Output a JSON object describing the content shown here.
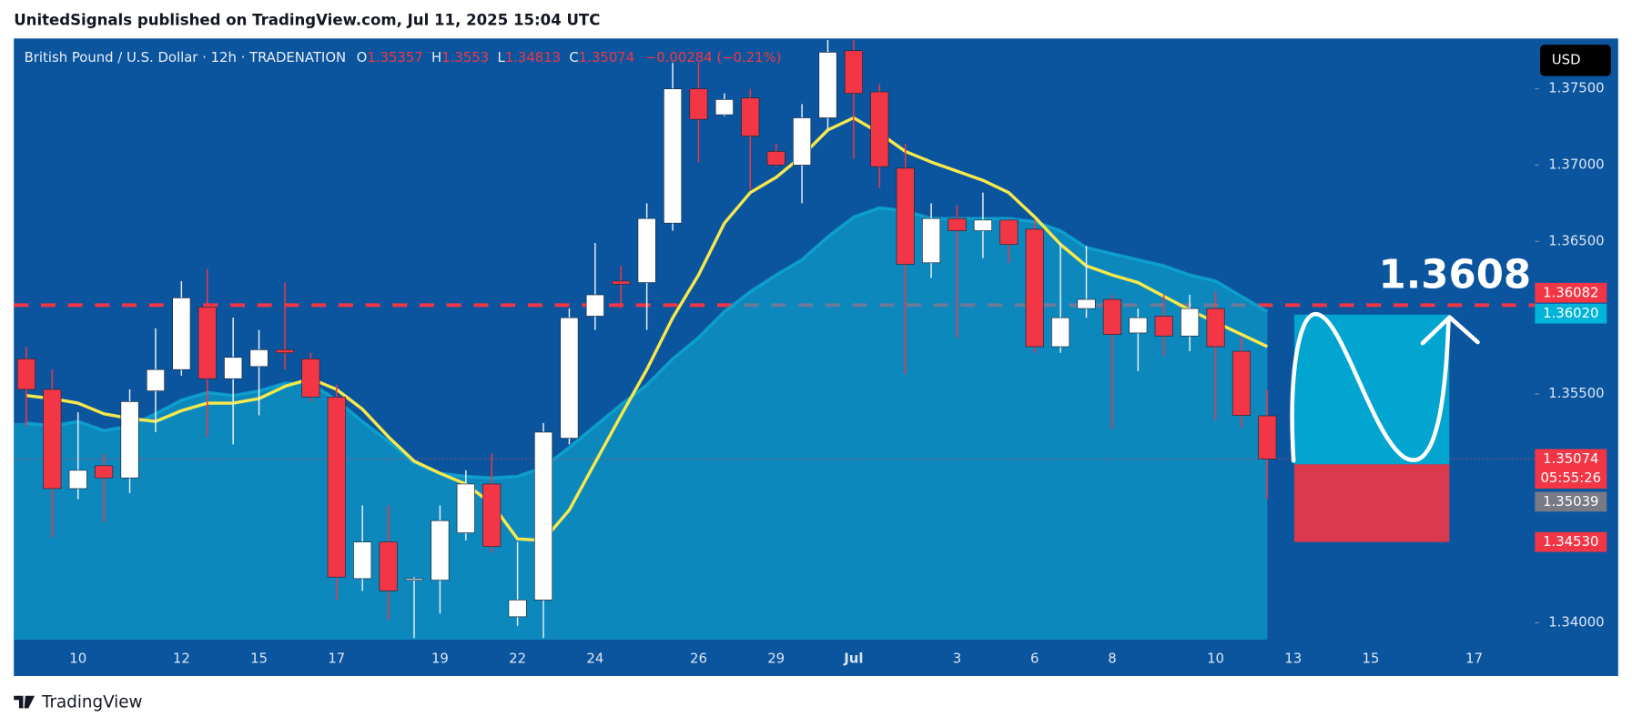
{
  "header": "UnitedSignals published on TradingView.com, Jul 11, 2025 15:04 UTC",
  "footer": "TradingView",
  "chart_data": {
    "type": "candlestick",
    "symbol": "British Pound / U.S. Dollar · 12h · TRADENATION",
    "ohlc_prefixes": [
      "O",
      "H",
      "L",
      "C"
    ],
    "change": "−0.00284 (−0.21%)",
    "currency": "USD",
    "countdown": "05:55:26",
    "annotation": "1.3608",
    "up_color": "#ffffff",
    "down_color": "#f23645",
    "categories": [
      null,
      null,
      "10",
      null,
      null,
      null,
      "12",
      null,
      null,
      "15",
      null,
      null,
      "17",
      null,
      null,
      null,
      "19",
      null,
      null,
      "22",
      null,
      null,
      "24",
      null,
      null,
      null,
      "26",
      null,
      null,
      "29",
      null,
      null,
      "Jul",
      null,
      null,
      null,
      "3",
      null,
      null,
      "6",
      null,
      null,
      "8",
      null,
      null,
      null,
      "10",
      null,
      null,
      "13",
      null,
      null,
      "15",
      null,
      null,
      null,
      "17"
    ],
    "open": [
      1.3573,
      1.3553,
      1.3488,
      1.3503,
      1.3495,
      1.3552,
      1.3566,
      1.3607,
      1.356,
      1.3568,
      1.3579,
      1.3573,
      1.3548,
      1.3429,
      1.3453,
      1.3428,
      1.3428,
      1.3459,
      1.3491,
      1.3404,
      1.3415,
      1.3521,
      1.3601,
      1.3624,
      1.3623,
      1.3662,
      1.375,
      1.3733,
      1.3744,
      1.3709,
      1.37,
      1.3731,
      1.3775,
      1.3748,
      1.3698,
      1.3636,
      1.3665,
      1.3657,
      1.3664,
      1.3658,
      1.3581,
      1.3606,
      1.3612,
      1.359,
      1.3601,
      1.3588,
      1.3606,
      1.3578,
      1.35357,
      null,
      null,
      null,
      null,
      null,
      null,
      null,
      null
    ],
    "high": [
      1.3581,
      1.3566,
      1.3538,
      1.3511,
      1.3553,
      1.3593,
      1.3624,
      1.3632,
      1.36,
      1.3592,
      1.3623,
      1.3577,
      1.3556,
      1.3477,
      1.3477,
      1.343,
      1.3477,
      1.35,
      1.3511,
      1.3453,
      1.3531,
      1.3606,
      1.3649,
      1.3634,
      1.3675,
      1.3767,
      1.3767,
      1.3747,
      1.375,
      1.3714,
      1.374,
      1.3782,
      1.3782,
      1.3753,
      1.3714,
      1.3675,
      1.3674,
      1.3682,
      1.3665,
      1.3664,
      1.3649,
      1.3647,
      1.3615,
      1.3606,
      1.3615,
      1.3615,
      1.3617,
      1.3587,
      1.3553,
      null,
      null,
      null,
      null,
      null,
      null,
      null,
      null
    ],
    "low": [
      1.3529,
      1.3456,
      1.3481,
      1.3466,
      1.3485,
      1.3525,
      1.3562,
      1.3522,
      1.3517,
      1.3536,
      1.3566,
      1.3545,
      1.3415,
      1.3421,
      1.3402,
      1.339,
      1.3406,
      1.3454,
      1.3446,
      1.3398,
      1.339,
      1.3517,
      1.3592,
      1.3606,
      1.3592,
      1.3657,
      1.3702,
      1.3732,
      1.3684,
      1.3699,
      1.3675,
      1.3723,
      1.3704,
      1.3685,
      1.3563,
      1.3626,
      1.3587,
      1.3639,
      1.3636,
      1.3577,
      1.3577,
      1.36,
      1.3527,
      1.3565,
      1.3575,
      1.3578,
      1.3533,
      1.3528,
      1.34813,
      null,
      null,
      null,
      null,
      null,
      null,
      null,
      null
    ],
    "close": [
      1.3553,
      1.3488,
      1.35,
      1.3495,
      1.3545,
      1.3566,
      1.3613,
      1.356,
      1.3574,
      1.3579,
      1.3577,
      1.3548,
      1.343,
      1.3453,
      1.3421,
      1.3429,
      1.3467,
      1.3491,
      1.345,
      1.3415,
      1.3525,
      1.36,
      1.3615,
      1.3622,
      1.3665,
      1.375,
      1.373,
      1.3743,
      1.3719,
      1.37,
      1.3731,
      1.3774,
      1.3747,
      1.3699,
      1.3635,
      1.3665,
      1.3657,
      1.3664,
      1.3648,
      1.3581,
      1.36,
      1.3612,
      1.3589,
      1.36,
      1.3588,
      1.3606,
      1.3581,
      1.3536,
      1.35074,
      null,
      null,
      null,
      null,
      null,
      null,
      null,
      null
    ],
    "line": {
      "color": "#f7e84b",
      "values": [
        1.3549,
        1.3547,
        1.3544,
        1.3537,
        1.3534,
        1.3532,
        1.3539,
        1.3544,
        1.3544,
        1.3547,
        1.3555,
        1.356,
        1.3553,
        1.354,
        1.3522,
        1.3506,
        1.3498,
        1.3491,
        1.3478,
        1.3455,
        1.3454,
        1.3474,
        1.3505,
        1.3536,
        1.3566,
        1.36,
        1.3628,
        1.3662,
        1.3682,
        1.3692,
        1.3706,
        1.3723,
        1.3731,
        1.3721,
        1.3709,
        1.3702,
        1.3696,
        1.369,
        1.3682,
        1.3666,
        1.3648,
        1.3634,
        1.3628,
        1.3623,
        1.3614,
        1.3605,
        1.3597,
        1.3589,
        1.3581,
        null,
        null,
        null,
        null,
        null,
        null,
        null,
        null
      ]
    },
    "area": {
      "color": "#0eaad2",
      "values": [
        1.3531,
        1.3529,
        1.3532,
        1.3526,
        1.3529,
        1.3537,
        1.3546,
        1.3551,
        1.3549,
        1.3552,
        1.3557,
        1.3557,
        1.3546,
        1.3532,
        1.3519,
        1.3505,
        1.3498,
        1.3496,
        1.3495,
        1.3496,
        1.3502,
        1.3515,
        1.3529,
        1.3543,
        1.3556,
        1.3573,
        1.3587,
        1.3604,
        1.3617,
        1.3628,
        1.3638,
        1.3653,
        1.3666,
        1.3672,
        1.367,
        1.3665,
        1.3665,
        1.3665,
        1.3665,
        1.3663,
        1.3657,
        1.3646,
        1.3642,
        1.3638,
        1.3634,
        1.3628,
        1.3624,
        1.3614,
        1.3604,
        null,
        null,
        null,
        null,
        null,
        null,
        null,
        null
      ]
    },
    "horizontal_line": {
      "value": 1.36082,
      "color": "#f23645"
    },
    "position": {
      "entry": 1.35039,
      "target": {
        "value": 1.3602,
        "label": "1.36020"
      },
      "stop": {
        "value": 1.3453,
        "label": "1.34530"
      },
      "target_color": "#00b4d8",
      "stop_color": "#f23645"
    },
    "ylim": [
      1.3389,
      1.3783
    ],
    "yticks": [
      {
        "value": 1.34,
        "label": "1.34000"
      },
      {
        "value": 1.355,
        "label": "1.35500"
      },
      {
        "value": 1.365,
        "label": "1.36500"
      },
      {
        "value": 1.37,
        "label": "1.37000"
      },
      {
        "value": 1.375,
        "label": "1.37500"
      }
    ]
  }
}
